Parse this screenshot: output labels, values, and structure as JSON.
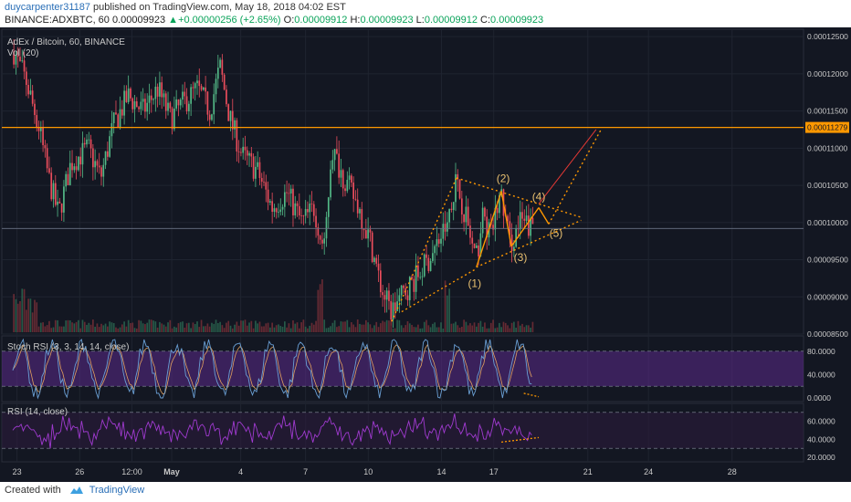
{
  "header": {
    "author": "duycarpenter31187",
    "published_text": "published on TradingView.com, May 18, 2018 04:02 EST",
    "symbol": "BINANCE:ADXBTC, 60",
    "last": "0.00009923",
    "change": "+0.00000256 (+2.65%)",
    "o_label": "O:",
    "o_value": "0.00009912",
    "h_label": "H:",
    "h_value": "0.00009923",
    "l_label": "L:",
    "l_value": "0.00009912",
    "c_label": "C:",
    "c_value": "0.00009923"
  },
  "footer": {
    "created_with": "Created with",
    "brand": "TradingView"
  },
  "colors": {
    "background": "#131722",
    "up_candle": "#53b987",
    "down_candle": "#eb4d5c",
    "resistance_line": "#ff9800",
    "pattern_dotted": "#ff9800",
    "target_line": "#e53935",
    "stoch_k": "#6a9fd4",
    "stoch_d": "#e0a060",
    "stoch_band": "#5b2a8a",
    "rsi_line": "#a03ad0",
    "rsi_band": "#2c1a3c",
    "label_text": "#e8c070",
    "axis_text": "#c8c8c8"
  },
  "chart_data": [
    {
      "type": "candlestick",
      "title": "AdEx / Bitcoin, 60, BINANCE",
      "indicator": "Vol (20)",
      "ylim": [
        8.5e-05,
        0.000126
      ],
      "y_ticks": [
        "0.00012500",
        "0.00012000",
        "0.00011500",
        "0.00011000",
        "0.00010500",
        "0.00010000",
        "0.00009500",
        "0.00009000",
        "0.00008500"
      ],
      "x_ticks": [
        "23",
        "26",
        "12:00",
        "May",
        "4",
        "7",
        "10",
        "14",
        "17",
        "21",
        "24",
        "28"
      ],
      "price_path": [
        {
          "d": 0.0,
          "p": 0.000123
        },
        {
          "d": 0.5,
          "p": 0.000119
        },
        {
          "d": 1.0,
          "p": 0.000113
        },
        {
          "d": 1.4,
          "p": 0.000106
        },
        {
          "d": 1.8,
          "p": 0.000101
        },
        {
          "d": 2.3,
          "p": 0.000108
        },
        {
          "d": 3.0,
          "p": 0.00011
        },
        {
          "d": 3.5,
          "p": 0.000106
        },
        {
          "d": 4.0,
          "p": 0.000113
        },
        {
          "d": 4.6,
          "p": 0.000117
        },
        {
          "d": 5.2,
          "p": 0.000115
        },
        {
          "d": 5.8,
          "p": 0.000118
        },
        {
          "d": 6.3,
          "p": 0.000114
        },
        {
          "d": 6.8,
          "p": 0.000116
        },
        {
          "d": 7.4,
          "p": 0.000118
        },
        {
          "d": 7.9,
          "p": 0.000115
        },
        {
          "d": 8.3,
          "p": 0.000121
        },
        {
          "d": 8.7,
          "p": 0.000114
        },
        {
          "d": 9.2,
          "p": 0.000109
        },
        {
          "d": 9.8,
          "p": 0.000107
        },
        {
          "d": 10.4,
          "p": 0.000102
        },
        {
          "d": 11.0,
          "p": 0.000104
        },
        {
          "d": 11.6,
          "p": 0.0001
        },
        {
          "d": 12.1,
          "p": 0.000102
        },
        {
          "d": 12.5,
          "p": 9.6e-05
        },
        {
          "d": 12.8,
          "p": 0.00011
        },
        {
          "d": 13.3,
          "p": 0.000106
        },
        {
          "d": 13.9,
          "p": 0.000102
        },
        {
          "d": 14.4,
          "p": 9.7e-05
        },
        {
          "d": 14.8,
          "p": 9.1e-05
        },
        {
          "d": 15.2,
          "p": 8.8e-05
        },
        {
          "d": 15.8,
          "p": 9.1e-05
        },
        {
          "d": 16.3,
          "p": 9.3e-05
        },
        {
          "d": 16.9,
          "p": 9.6e-05
        },
        {
          "d": 17.4,
          "p": 9.95e-05
        },
        {
          "d": 17.8,
          "p": 0.0001055
        },
        {
          "d": 18.2,
          "p": 0.000101
        },
        {
          "d": 18.6,
          "p": 9.45e-05
        },
        {
          "d": 18.9,
          "p": 0.000101
        },
        {
          "d": 19.2,
          "p": 9.8e-05
        },
        {
          "d": 19.6,
          "p": 0.000104
        },
        {
          "d": 20.0,
          "p": 9.7e-05
        },
        {
          "d": 20.4,
          "p": 0.0001
        },
        {
          "d": 20.9,
          "p": 9.92e-05
        }
      ],
      "horizontal_levels": [
        {
          "value": 0.00011279,
          "label": "0.00011279"
        },
        {
          "value": 9.92e-05,
          "label": ""
        }
      ],
      "pattern_points": [
        {
          "label": "(1)",
          "d": 18.6,
          "p": 9.35e-05
        },
        {
          "label": "(2)",
          "d": 19.65,
          "p": 0.000105
        },
        {
          "label": "(3)",
          "d": 20.0,
          "p": 9.6e-05
        },
        {
          "label": "(4)",
          "d": 21.1,
          "p": 0.0001028
        },
        {
          "label": "(5)",
          "d": 21.35,
          "p": 9.9e-05
        }
      ],
      "target": {
        "from": {
          "d": 21.1,
          "p": 0.0001025
        },
        "to": {
          "d": 22.3,
          "p": 0.0001125
        }
      }
    },
    {
      "type": "line",
      "title": "Stoch RSI (3, 3, 14, 14, close)",
      "y_ticks": [
        "80.0000",
        "40.0000",
        "0.0000"
      ],
      "ylim": [
        0,
        100
      ],
      "band": [
        20,
        80
      ]
    },
    {
      "type": "line",
      "title": "RSI (14, close)",
      "y_ticks": [
        "60.0000",
        "40.0000",
        "20.0000"
      ],
      "ylim": [
        15,
        80
      ],
      "band": [
        30,
        70
      ]
    }
  ]
}
